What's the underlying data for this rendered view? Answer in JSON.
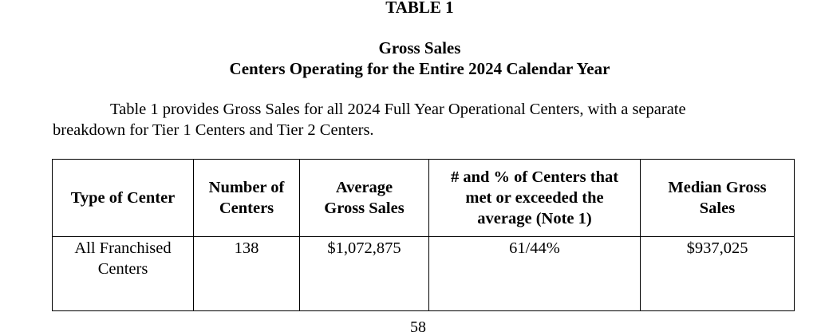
{
  "table_label": "TABLE 1",
  "title_line1": "Gross Sales",
  "title_line2": "Centers Operating for the Entire 2024 Calendar Year",
  "intro_line1": "Table 1 provides Gross Sales for all 2024 Full Year Operational Centers, with a separate",
  "intro_line2": "breakdown for Tier 1 Centers and Tier 2 Centers.",
  "table": {
    "headers": [
      [
        "Type of Center"
      ],
      [
        "Number of",
        "Centers"
      ],
      [
        "Average",
        "Gross Sales"
      ],
      [
        "# and % of Centers that",
        "met or exceeded the",
        "average (Note 1)"
      ],
      [
        "Median Gross",
        "Sales"
      ]
    ],
    "rows": [
      [
        [
          "All Franchised",
          "Centers"
        ],
        [
          "138"
        ],
        [
          "$1,072,875"
        ],
        [
          "61/44%"
        ],
        [
          "$937,025"
        ]
      ]
    ]
  },
  "page_number": "58"
}
